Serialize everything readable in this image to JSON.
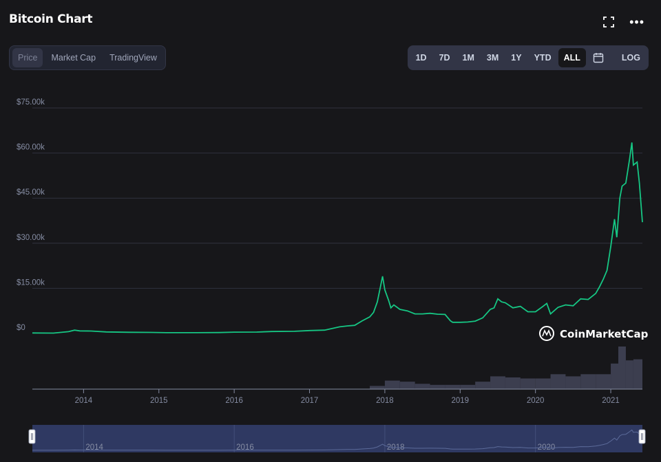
{
  "header": {
    "title": "Bitcoin Chart"
  },
  "icons": {
    "expand": "expand-icon",
    "more": "more-icon",
    "calendar": "calendar-icon"
  },
  "tabs": [
    {
      "label": "Price",
      "active": true
    },
    {
      "label": "Market Cap",
      "active": false
    },
    {
      "label": "TradingView",
      "active": false
    }
  ],
  "ranges": [
    {
      "label": "1D",
      "active": false
    },
    {
      "label": "7D",
      "active": false
    },
    {
      "label": "1M",
      "active": false
    },
    {
      "label": "3M",
      "active": false
    },
    {
      "label": "1Y",
      "active": false
    },
    {
      "label": "YTD",
      "active": false
    },
    {
      "label": "ALL",
      "active": true
    }
  ],
  "log_label": "LOG",
  "watermark": "CoinMarketCap",
  "colors": {
    "line": "#16c784",
    "volume": "#3c3e4f",
    "grid": "#30323f",
    "navigator": "#2f3962"
  },
  "chart_data": {
    "type": "line",
    "ylim": [
      0,
      75000
    ],
    "yticks": [
      0,
      15000,
      30000,
      45000,
      60000,
      75000
    ],
    "ytick_labels": [
      "$0",
      "$15.00k",
      "$30.00k",
      "$45.00k",
      "$60.00k",
      "$75.00k"
    ],
    "xlim": [
      2013.32,
      2021.42
    ],
    "xticks": [
      2014,
      2015,
      2016,
      2017,
      2018,
      2019,
      2020,
      2021
    ],
    "xtick_labels": [
      "2014",
      "2015",
      "2016",
      "2017",
      "2018",
      "2019",
      "2020",
      "2021"
    ],
    "navigator_labels": [
      "2014",
      "2016",
      "2018",
      "2020"
    ],
    "navigator_ticks": [
      2014,
      2016,
      2018,
      2020
    ],
    "series": [
      {
        "x": [
          2013.32,
          2013.6,
          2013.8,
          2013.88,
          2013.95,
          2014.1,
          2014.3,
          2014.6,
          2014.9,
          2015.1,
          2015.5,
          2015.8,
          2016.0,
          2016.3,
          2016.5,
          2016.8,
          2017.0,
          2017.2,
          2017.4,
          2017.5,
          2017.6,
          2017.7,
          2017.8,
          2017.85,
          2017.9,
          2017.95,
          2017.97,
          2018.0,
          2018.05,
          2018.08,
          2018.12,
          2018.2,
          2018.3,
          2018.4,
          2018.5,
          2018.6,
          2018.7,
          2018.8,
          2018.87,
          2018.9,
          2019.0,
          2019.1,
          2019.2,
          2019.3,
          2019.4,
          2019.45,
          2019.5,
          2019.55,
          2019.6,
          2019.7,
          2019.8,
          2019.9,
          2020.0,
          2020.1,
          2020.15,
          2020.2,
          2020.3,
          2020.4,
          2020.5,
          2020.6,
          2020.7,
          2020.8,
          2020.85,
          2020.9,
          2020.95,
          2021.0,
          2021.05,
          2021.08,
          2021.12,
          2021.15,
          2021.2,
          2021.25,
          2021.28,
          2021.3,
          2021.35,
          2021.38,
          2021.42
        ],
        "y": [
          150,
          120,
          600,
          1100,
          850,
          800,
          500,
          400,
          350,
          260,
          250,
          300,
          430,
          450,
          650,
          700,
          950,
          1100,
          2200,
          2500,
          2700,
          4200,
          5500,
          7000,
          10500,
          16500,
          19000,
          14500,
          11000,
          8500,
          9500,
          8000,
          7500,
          6500,
          6500,
          6700,
          6400,
          6300,
          4200,
          3700,
          3700,
          3800,
          4100,
          5200,
          8000,
          8500,
          11500,
          10500,
          10200,
          8500,
          9000,
          7200,
          7200,
          9000,
          10000,
          6500,
          8700,
          9500,
          9200,
          11500,
          11300,
          13300,
          15500,
          18000,
          21000,
          29000,
          38000,
          32000,
          45000,
          49000,
          50000,
          58000,
          63500,
          56000,
          57000,
          50000,
          37000
        ]
      }
    ],
    "volume": {
      "x": [
        2017.8,
        2018.0,
        2018.2,
        2018.4,
        2018.6,
        2018.8,
        2019.0,
        2019.2,
        2019.4,
        2019.6,
        2019.8,
        2020.0,
        2020.2,
        2020.4,
        2020.6,
        2020.8,
        2021.0,
        2021.1,
        2021.2,
        2021.3,
        2021.42
      ],
      "values": [
        3,
        8,
        7,
        5,
        4,
        4,
        4,
        7,
        12,
        11,
        10,
        10,
        14,
        12,
        14,
        14,
        24,
        40,
        27,
        28,
        30
      ]
    }
  }
}
